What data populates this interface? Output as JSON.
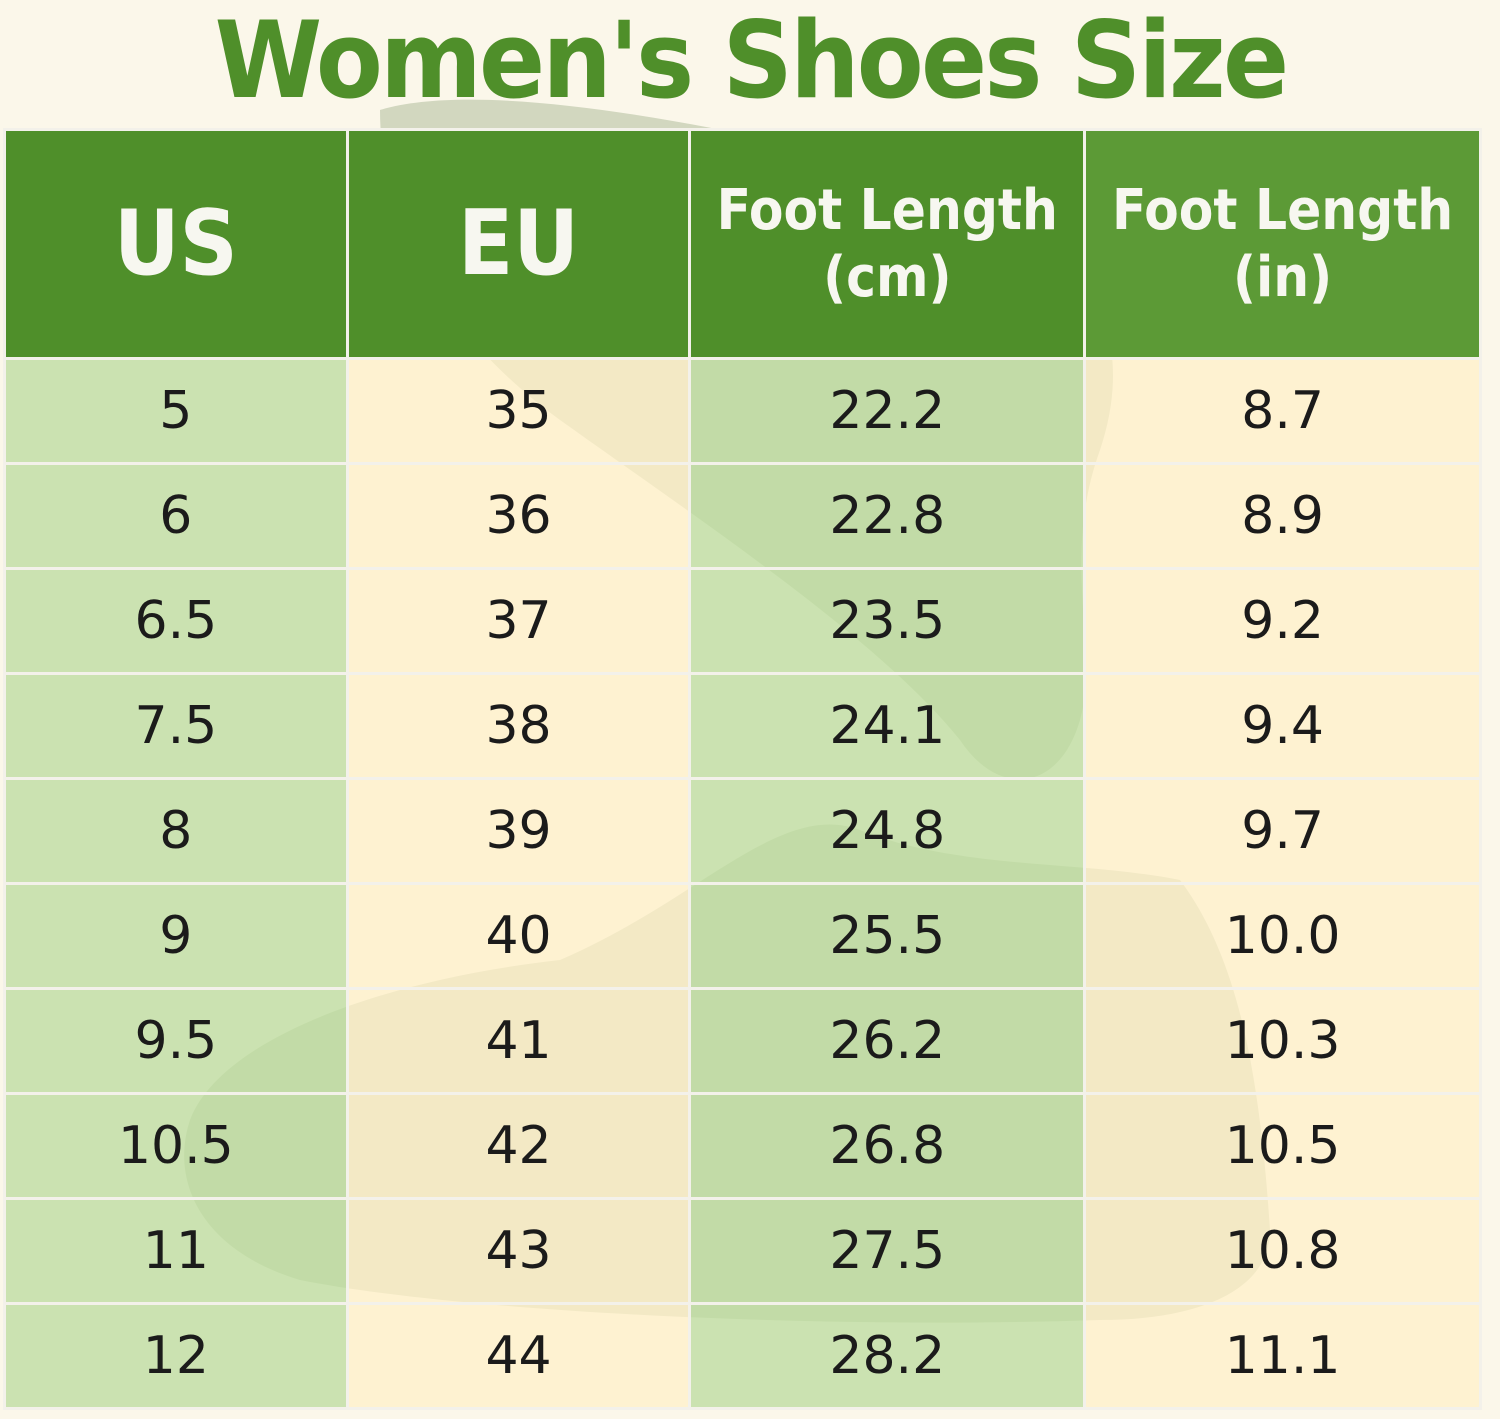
{
  "title": "Women's Shoes Size",
  "table": {
    "headers": {
      "us": "US",
      "eu": "EU",
      "cm_line1": "Foot Length",
      "cm_line2": "(cm)",
      "in_line1": "Foot Length",
      "in_line2": "(in)"
    },
    "rows": [
      {
        "us": "5",
        "eu": "35",
        "cm": "22.2",
        "in": "8.7"
      },
      {
        "us": "6",
        "eu": "36",
        "cm": "22.8",
        "in": "8.9"
      },
      {
        "us": "6.5",
        "eu": "37",
        "cm": "23.5",
        "in": "9.2"
      },
      {
        "us": "7.5",
        "eu": "38",
        "cm": "24.1",
        "in": "9.4"
      },
      {
        "us": "8",
        "eu": "39",
        "cm": "24.8",
        "in": "9.7"
      },
      {
        "us": "9",
        "eu": "40",
        "cm": "25.5",
        "in": "10.0"
      },
      {
        "us": "9.5",
        "eu": "41",
        "cm": "26.2",
        "in": "10.3"
      },
      {
        "us": "10.5",
        "eu": "42",
        "cm": "26.8",
        "in": "10.5"
      },
      {
        "us": "11",
        "eu": "43",
        "cm": "27.5",
        "in": "10.8"
      },
      {
        "us": "12",
        "eu": "44",
        "cm": "28.2",
        "in": "11.1"
      }
    ]
  },
  "colors": {
    "header_green": "#4f8f2a",
    "light_green_cell": "#cfe4b4",
    "cream_cell": "#fff1cc",
    "title_green": "#4f8f2a"
  }
}
